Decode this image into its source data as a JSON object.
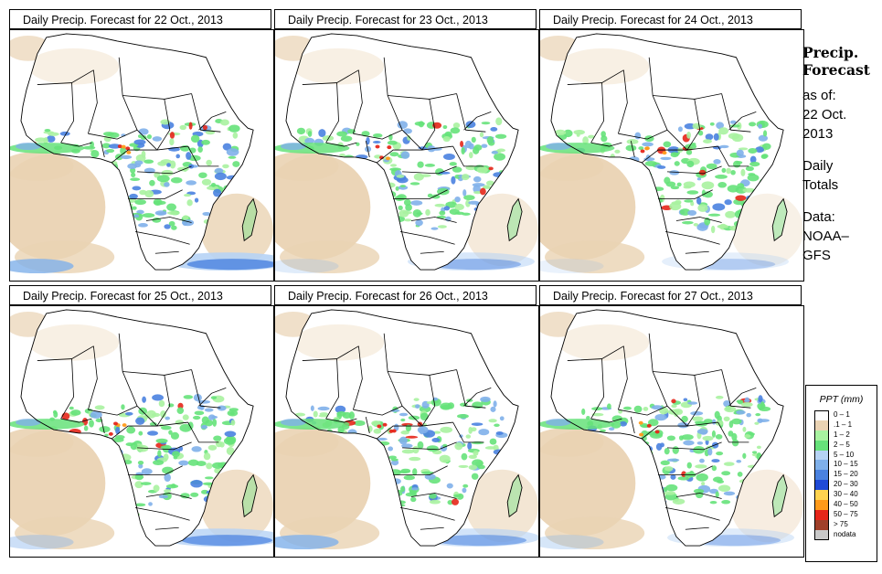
{
  "panels": [
    {
      "title": "Daily Precip. Forecast for  22 Oct., 2013",
      "seed": 11,
      "sw": 1.0,
      "se": 1.0
    },
    {
      "title": "Daily Precip. Forecast for  23 Oct., 2013",
      "seed": 23,
      "sw": 0.3,
      "se": 0.6
    },
    {
      "title": "Daily Precip. Forecast for  24 Oct., 2013",
      "seed": 37,
      "sw": 0.2,
      "se": 0.4
    },
    {
      "title": "Daily Precip. Forecast for  25 Oct., 2013",
      "seed": 41,
      "sw": 0.5,
      "se": 0.9
    },
    {
      "title": "Daily Precip. Forecast for  26 Oct., 2013",
      "seed": 53,
      "sw": 1.0,
      "se": 0.7
    },
    {
      "title": "Daily Precip. Forecast for  27 Oct., 2013",
      "seed": 67,
      "sw": 0.4,
      "se": 0.5
    }
  ],
  "side": {
    "title1": "Precip.",
    "title2": "Forecast",
    "asof1": "as of:",
    "asof2": "22 Oct.",
    "asof3": "2013",
    "daily1": "Daily",
    "daily2": "Totals",
    "data1": "Data:",
    "data2": "NOAA–",
    "data3": "GFS"
  },
  "legend": {
    "title": "PPT (mm)",
    "items": [
      {
        "label": "0 – 1",
        "color": "#ffffff"
      },
      {
        "label": ".1 – 1",
        "color": "#ead3b3"
      },
      {
        "label": "1 – 2",
        "color": "#a8f2a0"
      },
      {
        "label": "2 – 5",
        "color": "#66e27a"
      },
      {
        "label": "5 – 10",
        "color": "#b6d3f5"
      },
      {
        "label": "10 – 15",
        "color": "#7fb0ea"
      },
      {
        "label": "15 – 20",
        "color": "#4a82e0"
      },
      {
        "label": "20 – 30",
        "color": "#1f4ad6"
      },
      {
        "label": "30 – 40",
        "color": "#ffd34f"
      },
      {
        "label": "40 – 50",
        "color": "#ff9a1a"
      },
      {
        "label": "50 – 75",
        "color": "#e6261a"
      },
      {
        "label": "> 75",
        "color": "#a0402a"
      },
      {
        "label": "nodata",
        "color": "#c9c9c9"
      }
    ]
  }
}
